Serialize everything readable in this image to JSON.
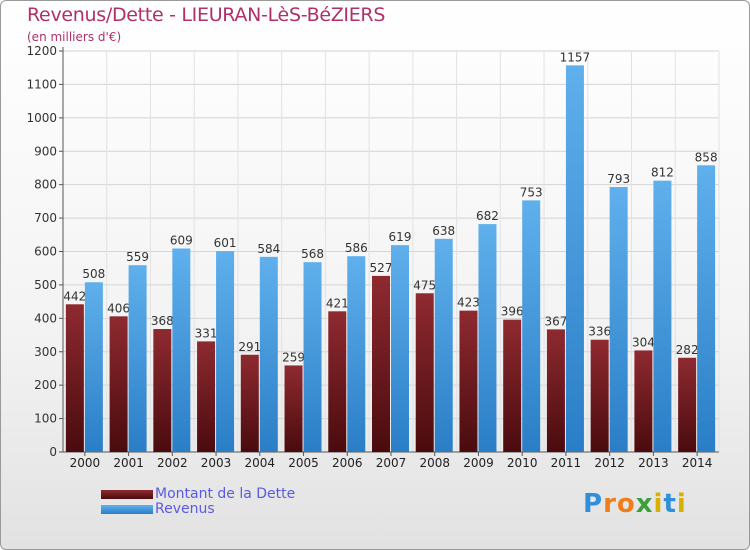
{
  "title": "Revenus/Dette - LIEURAN-LèS-BéZIERS",
  "subtitle": "(en milliers d'€)",
  "colors": {
    "dette": "#7a1f24",
    "revenus": "#3a97dc",
    "title": "#b0306a",
    "legend_text": "#5a5ae0"
  },
  "legend": [
    {
      "label": "Montant de la Dette",
      "color": "#6b1a1e"
    },
    {
      "label": "Revenus",
      "color": "#3a97dc"
    }
  ],
  "logo": {
    "text": "Proxiti",
    "letters": [
      "P",
      "r",
      "o",
      "x",
      "i",
      "t",
      "i"
    ],
    "colors": [
      "#2f8fd8",
      "#f07c1a",
      "#f07c1a",
      "#3aa03a",
      "#d8b000",
      "#2f8fd8",
      "#d8b000"
    ]
  },
  "chart_data": {
    "type": "bar",
    "categories": [
      "2000",
      "2001",
      "2002",
      "2003",
      "2004",
      "2005",
      "2006",
      "2007",
      "2008",
      "2009",
      "2010",
      "2011",
      "2012",
      "2013",
      "2014"
    ],
    "series": [
      {
        "name": "Montant de la Dette",
        "values": [
          442,
          406,
          368,
          331,
          291,
          259,
          421,
          527,
          475,
          423,
          396,
          367,
          336,
          304,
          282
        ]
      },
      {
        "name": "Revenus",
        "values": [
          508,
          559,
          609,
          601,
          584,
          568,
          586,
          619,
          638,
          682,
          753,
          1157,
          793,
          812,
          858
        ]
      }
    ],
    "ylim": [
      0,
      1200
    ],
    "yticks": [
      0,
      100,
      200,
      300,
      400,
      500,
      600,
      700,
      800,
      900,
      1000,
      1100,
      1200
    ],
    "grid": true,
    "legend_position": "bottom-left"
  }
}
